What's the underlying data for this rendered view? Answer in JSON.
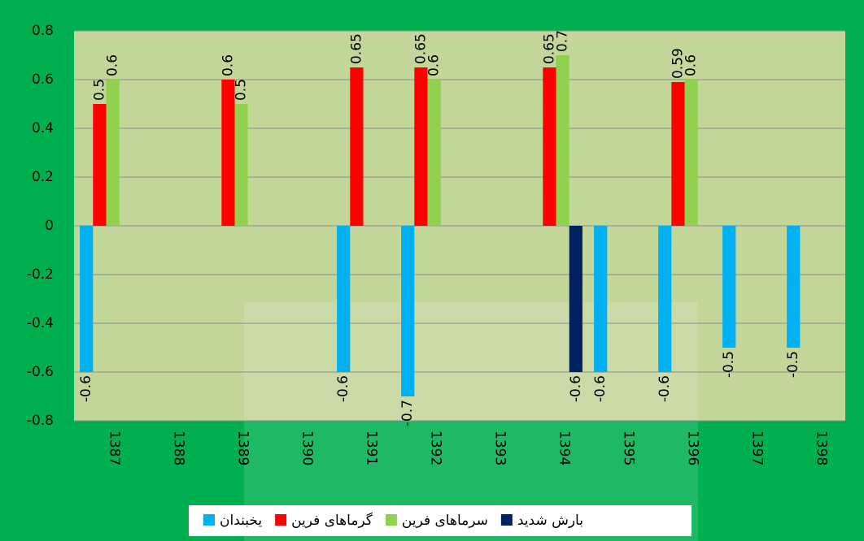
{
  "chart_data": {
    "type": "bar",
    "categories": [
      "1387",
      "1388",
      "1389",
      "1390",
      "1391",
      "1392",
      "1393",
      "1394",
      "1395",
      "1396",
      "1397",
      "1398"
    ],
    "series": [
      {
        "name": "یخبندان",
        "color": "#00b0f0",
        "values": [
          -0.6,
          null,
          null,
          null,
          -0.6,
          -0.7,
          null,
          null,
          -0.6,
          -0.6,
          -0.5,
          -0.5
        ]
      },
      {
        "name": "گرماهای فرین",
        "color": "#ff0000",
        "values": [
          0.5,
          null,
          0.6,
          null,
          0.65,
          0.65,
          null,
          0.65,
          null,
          0.59,
          null,
          null
        ]
      },
      {
        "name": "سرماهای فرین",
        "color": "#92d050",
        "values": [
          0.6,
          null,
          0.5,
          null,
          null,
          0.6,
          null,
          0.7,
          null,
          0.6,
          null,
          null
        ]
      },
      {
        "name": "بارش شدید",
        "color": "#002060",
        "values": [
          null,
          null,
          null,
          null,
          null,
          null,
          null,
          -0.6,
          null,
          null,
          null,
          null
        ]
      }
    ],
    "ylim": [
      -0.8,
      0.8
    ],
    "yticks": [
      -0.8,
      -0.6,
      -0.4,
      -0.2,
      0,
      0.2,
      0.4,
      0.6,
      0.8
    ],
    "grid": true
  }
}
